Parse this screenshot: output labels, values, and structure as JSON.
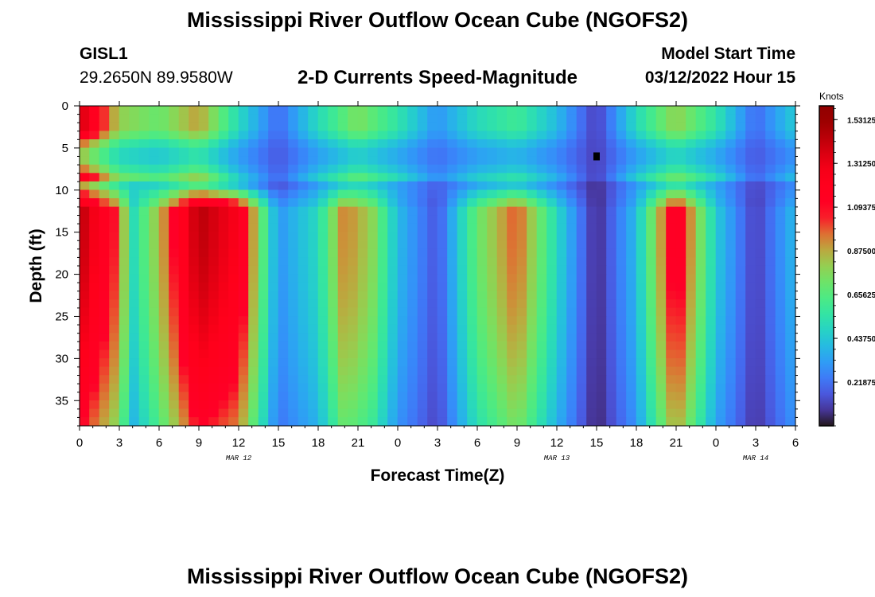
{
  "header": {
    "title": "Mississippi River Outflow Ocean Cube (NGOFS2)",
    "station_id": "GISL1",
    "station_coords": "29.2650N  89.9580W",
    "subtitle": "2-D Currents Speed-Magnitude",
    "start_label": "Model Start Time",
    "start_value": "03/12/2022 Hour 15"
  },
  "footer": {
    "title": "Mississippi River Outflow Ocean Cube (NGOFS2)"
  },
  "chart_data": {
    "type": "heatmap",
    "xlabel": "Forecast Time(Z)",
    "ylabel": "Depth (ft)",
    "x_range_hours": [
      0,
      54
    ],
    "y_range_ft": [
      0,
      38
    ],
    "y_inverted": true,
    "x_ticks": [
      "0",
      "3",
      "6",
      "9",
      "12",
      "15",
      "18",
      "21",
      "0",
      "3",
      "6",
      "9",
      "12",
      "15",
      "18",
      "21",
      "0",
      "3",
      "6"
    ],
    "y_ticks": [
      0,
      5,
      10,
      15,
      20,
      25,
      30,
      35
    ],
    "day_labels": [
      {
        "text": "MAR 12",
        "at_hour": 12
      },
      {
        "text": "MAR 13",
        "at_hour": 36
      },
      {
        "text": "MAR 14",
        "at_hour": 51
      }
    ],
    "colorbar": {
      "title": "Knots",
      "min": 0,
      "max": 1.6,
      "labels": [
        "1.53125",
        "1.31250",
        "1.09375",
        "0.87500",
        "0.65625",
        "0.43750",
        "0.21875"
      ],
      "label_values": [
        1.53125,
        1.3125,
        1.09375,
        0.875,
        0.65625,
        0.4375,
        0.21875
      ],
      "colormap": "turbo"
    },
    "bottom_layer_speed_knots": [
      {
        "hour": 0,
        "value": 1.45
      },
      {
        "hour": 3,
        "value": 1.0
      },
      {
        "hour": 4,
        "value": 0.5
      },
      {
        "hour": 6,
        "value": 0.85
      },
      {
        "hour": 9,
        "value": 1.45
      },
      {
        "hour": 12,
        "value": 1.25
      },
      {
        "hour": 15,
        "value": 0.3
      },
      {
        "hour": 18,
        "value": 0.5
      },
      {
        "hour": 20,
        "value": 0.95
      },
      {
        "hour": 22,
        "value": 0.8
      },
      {
        "hour": 24,
        "value": 0.4
      },
      {
        "hour": 27,
        "value": 0.15
      },
      {
        "hour": 30,
        "value": 0.7
      },
      {
        "hour": 33,
        "value": 1.0
      },
      {
        "hour": 36,
        "value": 0.5
      },
      {
        "hour": 39,
        "value": 0.05
      },
      {
        "hour": 42,
        "value": 0.4
      },
      {
        "hour": 45,
        "value": 1.2
      },
      {
        "hour": 48,
        "value": 0.45
      },
      {
        "hour": 51,
        "value": 0.1
      },
      {
        "hour": 54,
        "value": 0.4
      }
    ],
    "surface_layer_speed_knots": [
      {
        "hour": 0,
        "value": 1.4
      },
      {
        "hour": 3,
        "value": 0.8
      },
      {
        "hour": 6,
        "value": 0.7
      },
      {
        "hour": 9,
        "value": 0.9
      },
      {
        "hour": 12,
        "value": 0.5
      },
      {
        "hour": 15,
        "value": 0.2
      },
      {
        "hour": 18,
        "value": 0.5
      },
      {
        "hour": 21,
        "value": 0.75
      },
      {
        "hour": 24,
        "value": 0.55
      },
      {
        "hour": 27,
        "value": 0.3
      },
      {
        "hour": 30,
        "value": 0.5
      },
      {
        "hour": 33,
        "value": 0.6
      },
      {
        "hour": 36,
        "value": 0.4
      },
      {
        "hour": 39,
        "value": 0.1
      },
      {
        "hour": 42,
        "value": 0.5
      },
      {
        "hour": 45,
        "value": 0.8
      },
      {
        "hour": 48,
        "value": 0.55
      },
      {
        "hour": 51,
        "value": 0.2
      },
      {
        "hour": 54,
        "value": 0.45
      }
    ],
    "marker": {
      "hour": 39,
      "depth_ft": 6
    }
  }
}
